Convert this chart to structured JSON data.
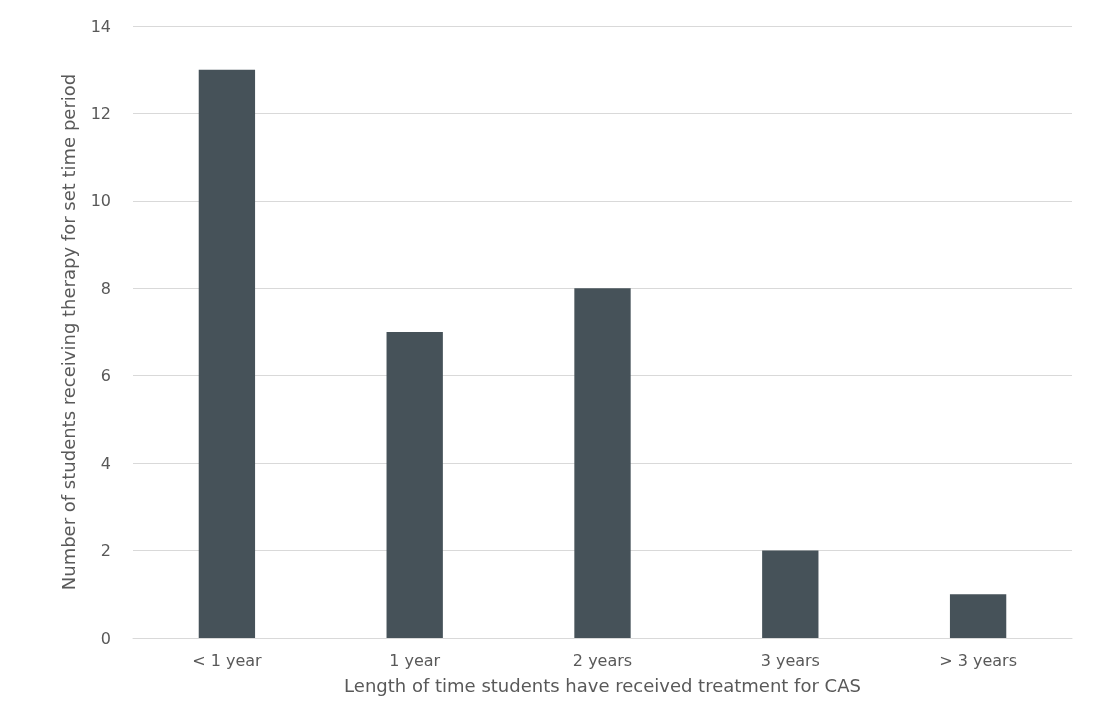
{
  "chart_data": {
    "type": "bar",
    "xlabel": "Length of time students have received treatment for CAS",
    "ylabel": "Number of students receiving therapy for set time period",
    "categories": [
      "< 1 year",
      "1 year",
      "2 years",
      "3 years",
      "> 3 years"
    ],
    "values": [
      13,
      7,
      8,
      2,
      1
    ],
    "color": "#465259",
    "ylim": [
      0,
      14
    ],
    "yticks": [
      0,
      2,
      4,
      6,
      8,
      10,
      12,
      14
    ],
    "grid": "y"
  }
}
